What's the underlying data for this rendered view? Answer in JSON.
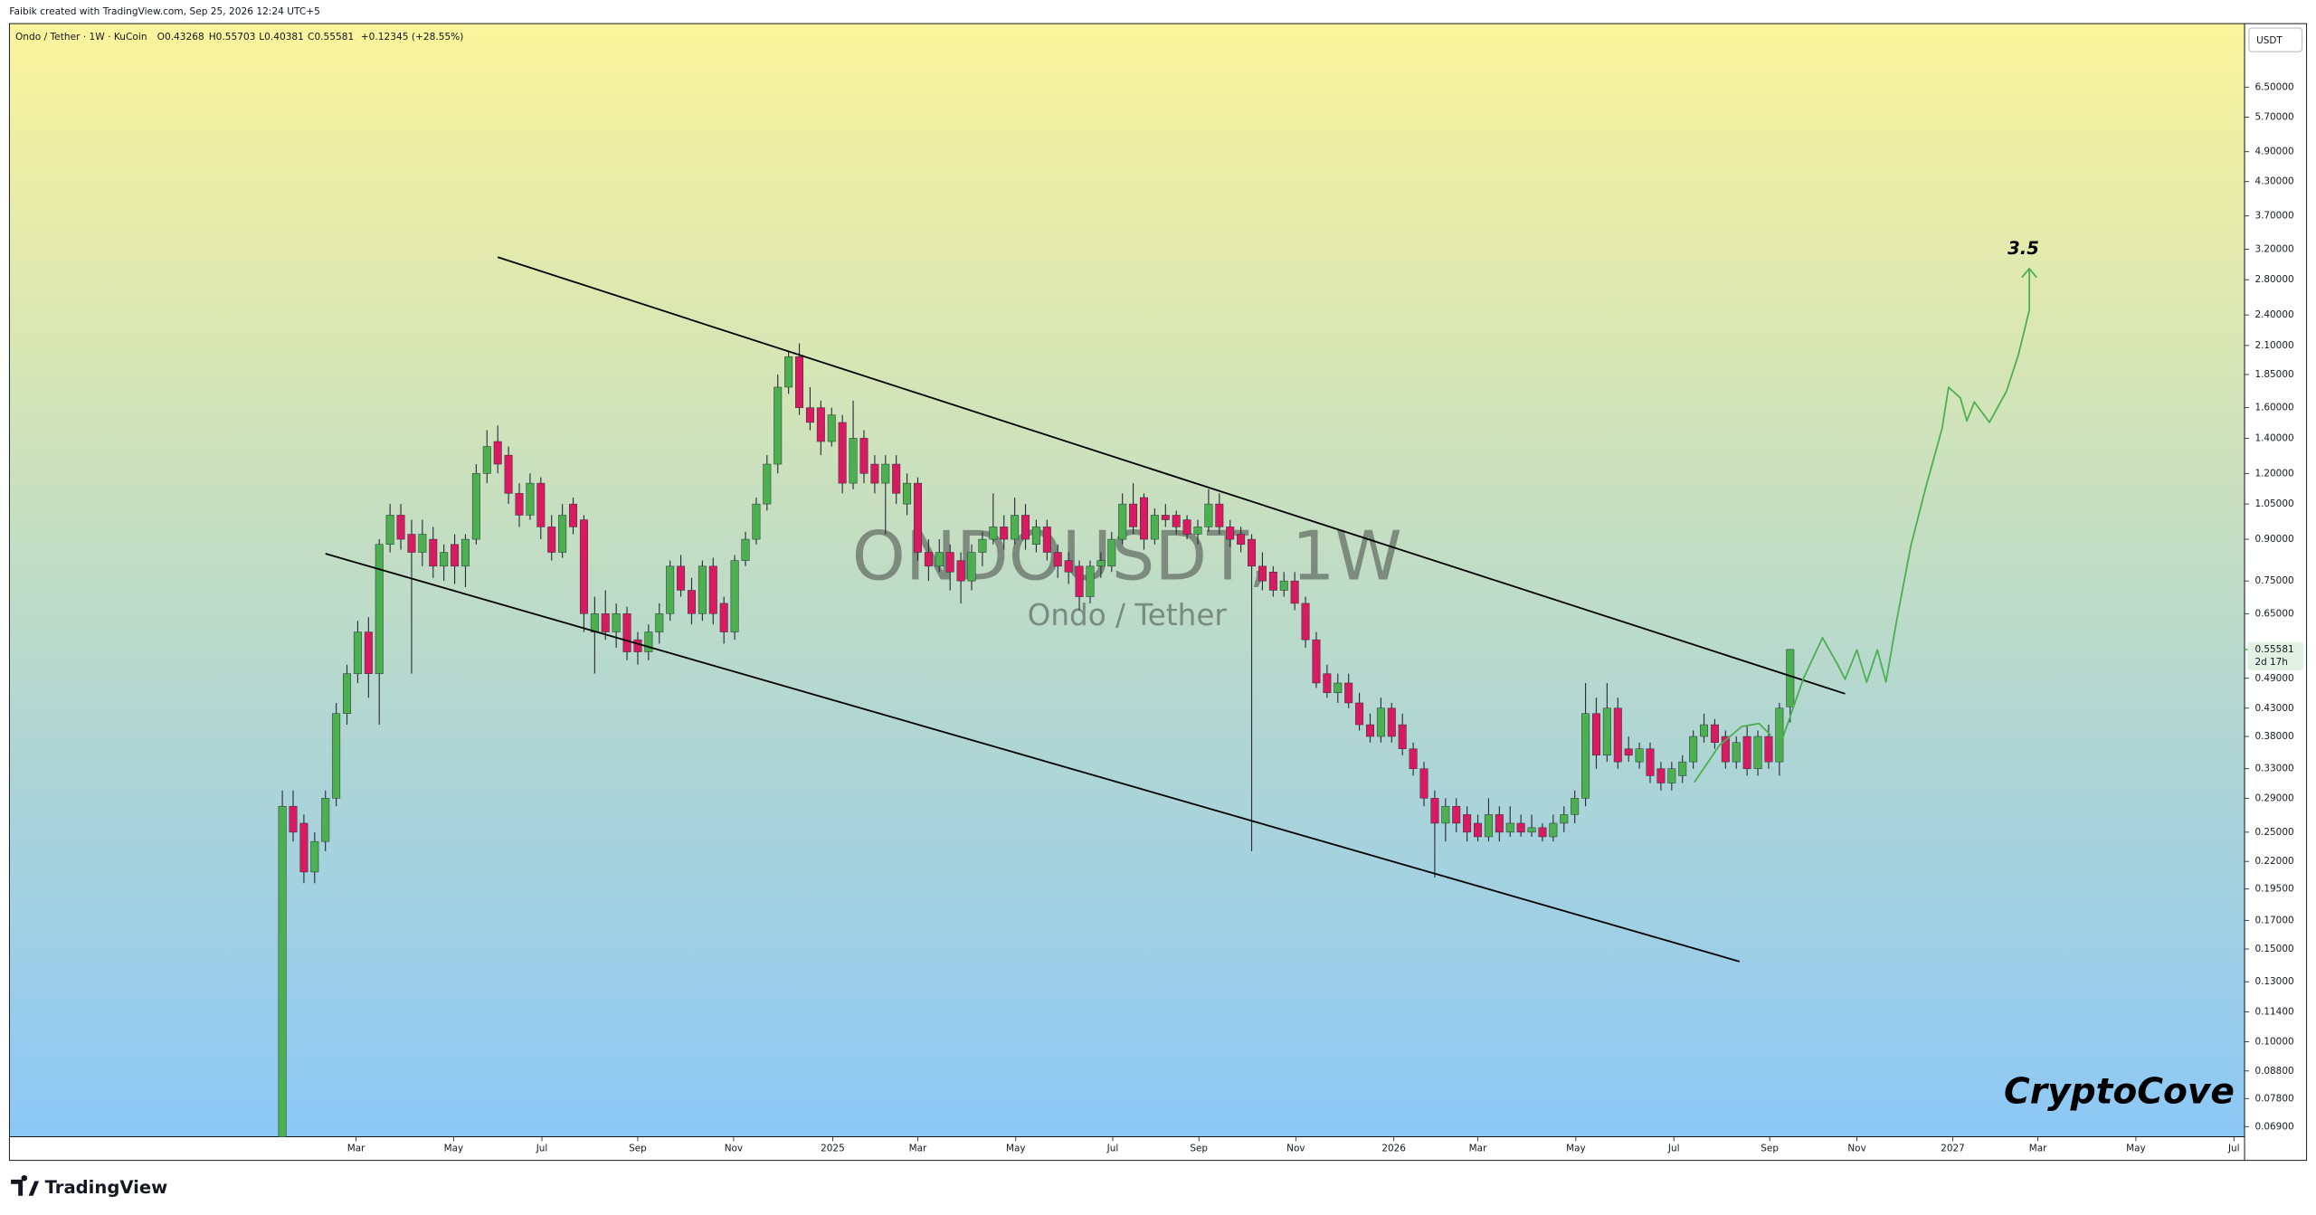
{
  "chart_data": {
    "type": "candlestick",
    "created_by": "Faibik created with TradingView.com, Sep 25, 2026 12:24 UTC+5",
    "legend": {
      "symbol": "Ondo / Tether · 1W · KuCoin",
      "open": "O0.43268",
      "high": "H0.55703",
      "low": "L0.40381",
      "close": "C0.55581",
      "change": "+0.12345 (+28.55%)"
    },
    "watermark": {
      "symbol": "ONDOUSDT, 1W",
      "description": "Ondo / Tether"
    },
    "currency": "USDT",
    "brand": "TradingView",
    "signature": "CryptoCove",
    "log_scale": true,
    "grid": false,
    "up_color": "#4caf50",
    "down_color": "#d81b60",
    "wick_color": "#2a2e39",
    "ylim": [
      0.066,
      8.58
    ],
    "yticks": [
      {
        "value": 6.5,
        "label": "6.50000"
      },
      {
        "value": 5.7,
        "label": "5.70000"
      },
      {
        "value": 4.9,
        "label": "4.90000"
      },
      {
        "value": 4.3,
        "label": "4.30000"
      },
      {
        "value": 3.7,
        "label": "3.70000"
      },
      {
        "value": 3.2,
        "label": "3.20000"
      },
      {
        "value": 2.8,
        "label": "2.80000"
      },
      {
        "value": 2.4,
        "label": "2.40000"
      },
      {
        "value": 2.1,
        "label": "2.10000"
      },
      {
        "value": 1.85,
        "label": "1.85000"
      },
      {
        "value": 1.6,
        "label": "1.60000"
      },
      {
        "value": 1.4,
        "label": "1.40000"
      },
      {
        "value": 1.2,
        "label": "1.20000"
      },
      {
        "value": 1.05,
        "label": "1.05000"
      },
      {
        "value": 0.9,
        "label": "0.90000"
      },
      {
        "value": 0.75,
        "label": "0.75000"
      },
      {
        "value": 0.65,
        "label": "0.65000"
      },
      {
        "value": 0.49,
        "label": "0.49000"
      },
      {
        "value": 0.43,
        "label": "0.43000"
      },
      {
        "value": 0.38,
        "label": "0.38000"
      },
      {
        "value": 0.33,
        "label": "0.33000"
      },
      {
        "value": 0.29,
        "label": "0.29000"
      },
      {
        "value": 0.25,
        "label": "0.25000"
      },
      {
        "value": 0.22,
        "label": "0.22000"
      },
      {
        "value": 0.195,
        "label": "0.19500"
      },
      {
        "value": 0.17,
        "label": "0.17000"
      },
      {
        "value": 0.15,
        "label": "0.15000"
      },
      {
        "value": 0.13,
        "label": "0.13000"
      },
      {
        "value": 0.114,
        "label": "0.11400"
      },
      {
        "value": 0.1,
        "label": "0.10000"
      },
      {
        "value": 0.088,
        "label": "0.08800"
      },
      {
        "value": 0.078,
        "label": "0.07800"
      },
      {
        "value": 0.069,
        "label": "0.06900"
      }
    ],
    "last_price": {
      "value": 0.55581,
      "label": "0.55581",
      "countdown": "2d 17h"
    },
    "xlim": [
      -25.34,
      182.19
    ],
    "xticks": [
      {
        "value": 6.85,
        "label": "Mar"
      },
      {
        "value": 15.9,
        "label": "May"
      },
      {
        "value": 24.1,
        "label": "Jul"
      },
      {
        "value": 33.0,
        "label": "Sep"
      },
      {
        "value": 41.9,
        "label": "Nov"
      },
      {
        "value": 51.1,
        "label": "2025"
      },
      {
        "value": 59.0,
        "label": "Mar"
      },
      {
        "value": 68.1,
        "label": "May"
      },
      {
        "value": 77.1,
        "label": "Jul"
      },
      {
        "value": 85.1,
        "label": "Sep"
      },
      {
        "value": 94.1,
        "label": "Nov"
      },
      {
        "value": 103.2,
        "label": "2026"
      },
      {
        "value": 111.0,
        "label": "Mar"
      },
      {
        "value": 120.1,
        "label": "May"
      },
      {
        "value": 129.2,
        "label": "Jul"
      },
      {
        "value": 138.1,
        "label": "Sep"
      },
      {
        "value": 146.2,
        "label": "Nov"
      },
      {
        "value": 155.1,
        "label": "2027"
      },
      {
        "value": 163.0,
        "label": "Mar"
      },
      {
        "value": 172.1,
        "label": "May"
      },
      {
        "value": 181.2,
        "label": "Jul"
      }
    ],
    "ohlc": [
      [
        0.065,
        0.3,
        0.06,
        0.28
      ],
      [
        0.28,
        0.3,
        0.24,
        0.25
      ],
      [
        0.26,
        0.27,
        0.2,
        0.21
      ],
      [
        0.21,
        0.25,
        0.2,
        0.24
      ],
      [
        0.24,
        0.3,
        0.23,
        0.29
      ],
      [
        0.29,
        0.44,
        0.28,
        0.42
      ],
      [
        0.42,
        0.52,
        0.4,
        0.5
      ],
      [
        0.5,
        0.63,
        0.48,
        0.6
      ],
      [
        0.6,
        0.64,
        0.45,
        0.5
      ],
      [
        0.5,
        0.9,
        0.4,
        0.88
      ],
      [
        0.88,
        1.05,
        0.85,
        1.0
      ],
      [
        1.0,
        1.05,
        0.86,
        0.9
      ],
      [
        0.92,
        0.98,
        0.5,
        0.85
      ],
      [
        0.85,
        0.98,
        0.8,
        0.92
      ],
      [
        0.9,
        0.95,
        0.76,
        0.8
      ],
      [
        0.8,
        0.88,
        0.75,
        0.85
      ],
      [
        0.88,
        0.92,
        0.74,
        0.8
      ],
      [
        0.8,
        0.92,
        0.73,
        0.9
      ],
      [
        0.9,
        1.25,
        0.88,
        1.2
      ],
      [
        1.2,
        1.45,
        1.15,
        1.35
      ],
      [
        1.38,
        1.48,
        1.2,
        1.25
      ],
      [
        1.3,
        1.35,
        1.05,
        1.1
      ],
      [
        1.1,
        1.15,
        0.95,
        1.0
      ],
      [
        1.0,
        1.2,
        0.98,
        1.15
      ],
      [
        1.15,
        1.18,
        0.9,
        0.95
      ],
      [
        0.95,
        1.0,
        0.82,
        0.85
      ],
      [
        0.85,
        1.05,
        0.83,
        1.0
      ],
      [
        1.05,
        1.08,
        0.92,
        0.95
      ],
      [
        0.98,
        1.0,
        0.6,
        0.65
      ],
      [
        0.6,
        0.7,
        0.5,
        0.65
      ],
      [
        0.65,
        0.72,
        0.58,
        0.6
      ],
      [
        0.6,
        0.68,
        0.56,
        0.65
      ],
      [
        0.65,
        0.67,
        0.53,
        0.55
      ],
      [
        0.58,
        0.6,
        0.52,
        0.55
      ],
      [
        0.55,
        0.62,
        0.53,
        0.6
      ],
      [
        0.6,
        0.68,
        0.57,
        0.65
      ],
      [
        0.65,
        0.82,
        0.63,
        0.8
      ],
      [
        0.8,
        0.84,
        0.7,
        0.72
      ],
      [
        0.72,
        0.76,
        0.62,
        0.65
      ],
      [
        0.65,
        0.82,
        0.63,
        0.8
      ],
      [
        0.8,
        0.83,
        0.62,
        0.65
      ],
      [
        0.68,
        0.7,
        0.57,
        0.6
      ],
      [
        0.6,
        0.84,
        0.58,
        0.82
      ],
      [
        0.82,
        0.93,
        0.8,
        0.9
      ],
      [
        0.9,
        1.08,
        0.88,
        1.05
      ],
      [
        1.05,
        1.3,
        1.02,
        1.25
      ],
      [
        1.25,
        1.85,
        1.2,
        1.75
      ],
      [
        1.75,
        2.05,
        1.7,
        2.0
      ],
      [
        2.0,
        2.12,
        1.55,
        1.6
      ],
      [
        1.6,
        1.75,
        1.45,
        1.5
      ],
      [
        1.6,
        1.65,
        1.3,
        1.38
      ],
      [
        1.38,
        1.6,
        1.35,
        1.55
      ],
      [
        1.5,
        1.55,
        1.1,
        1.15
      ],
      [
        1.15,
        1.65,
        1.12,
        1.4
      ],
      [
        1.4,
        1.45,
        1.15,
        1.2
      ],
      [
        1.25,
        1.3,
        1.1,
        1.15
      ],
      [
        1.15,
        1.3,
        0.92,
        1.25
      ],
      [
        1.25,
        1.3,
        1.05,
        1.1
      ],
      [
        1.05,
        1.2,
        1.0,
        1.15
      ],
      [
        1.15,
        1.18,
        0.82,
        0.85
      ],
      [
        0.85,
        0.9,
        0.75,
        0.8
      ],
      [
        0.8,
        0.9,
        0.78,
        0.85
      ],
      [
        0.85,
        0.88,
        0.72,
        0.78
      ],
      [
        0.82,
        0.85,
        0.68,
        0.75
      ],
      [
        0.75,
        0.88,
        0.72,
        0.85
      ],
      [
        0.85,
        0.93,
        0.8,
        0.9
      ],
      [
        0.9,
        1.1,
        0.88,
        0.95
      ],
      [
        0.95,
        1.0,
        0.86,
        0.9
      ],
      [
        0.9,
        1.08,
        0.88,
        1.0
      ],
      [
        1.0,
        1.05,
        0.86,
        0.9
      ],
      [
        0.88,
        0.98,
        0.85,
        0.95
      ],
      [
        0.95,
        0.98,
        0.82,
        0.85
      ],
      [
        0.85,
        0.88,
        0.76,
        0.8
      ],
      [
        0.82,
        0.85,
        0.74,
        0.78
      ],
      [
        0.8,
        0.82,
        0.66,
        0.7
      ],
      [
        0.7,
        0.82,
        0.68,
        0.8
      ],
      [
        0.8,
        0.85,
        0.76,
        0.82
      ],
      [
        0.8,
        0.93,
        0.78,
        0.9
      ],
      [
        0.9,
        1.1,
        0.88,
        1.05
      ],
      [
        1.05,
        1.15,
        0.92,
        0.95
      ],
      [
        1.08,
        1.1,
        0.86,
        0.9
      ],
      [
        0.9,
        1.03,
        0.88,
        1.0
      ],
      [
        1.0,
        1.05,
        0.95,
        0.98
      ],
      [
        1.0,
        1.02,
        0.92,
        0.95
      ],
      [
        0.98,
        1.0,
        0.9,
        0.92
      ],
      [
        0.92,
        0.98,
        0.88,
        0.95
      ],
      [
        0.95,
        1.12,
        0.93,
        1.05
      ],
      [
        1.05,
        1.1,
        0.92,
        0.95
      ],
      [
        0.95,
        0.98,
        0.87,
        0.9
      ],
      [
        0.92,
        0.95,
        0.85,
        0.88
      ],
      [
        0.9,
        0.92,
        0.23,
        0.8
      ],
      [
        0.8,
        0.85,
        0.72,
        0.75
      ],
      [
        0.78,
        0.8,
        0.7,
        0.72
      ],
      [
        0.72,
        0.78,
        0.7,
        0.75
      ],
      [
        0.75,
        0.78,
        0.66,
        0.68
      ],
      [
        0.68,
        0.7,
        0.56,
        0.58
      ],
      [
        0.58,
        0.6,
        0.47,
        0.48
      ],
      [
        0.5,
        0.52,
        0.45,
        0.46
      ],
      [
        0.46,
        0.5,
        0.44,
        0.48
      ],
      [
        0.48,
        0.5,
        0.43,
        0.44
      ],
      [
        0.44,
        0.46,
        0.39,
        0.4
      ],
      [
        0.4,
        0.42,
        0.37,
        0.38
      ],
      [
        0.38,
        0.45,
        0.37,
        0.43
      ],
      [
        0.43,
        0.44,
        0.37,
        0.38
      ],
      [
        0.4,
        0.42,
        0.35,
        0.36
      ],
      [
        0.36,
        0.37,
        0.32,
        0.33
      ],
      [
        0.33,
        0.34,
        0.28,
        0.29
      ],
      [
        0.29,
        0.3,
        0.205,
        0.26
      ],
      [
        0.26,
        0.29,
        0.24,
        0.28
      ],
      [
        0.28,
        0.29,
        0.25,
        0.26
      ],
      [
        0.27,
        0.28,
        0.24,
        0.25
      ],
      [
        0.26,
        0.27,
        0.24,
        0.245
      ],
      [
        0.245,
        0.29,
        0.24,
        0.27
      ],
      [
        0.27,
        0.28,
        0.24,
        0.25
      ],
      [
        0.25,
        0.28,
        0.245,
        0.26
      ],
      [
        0.26,
        0.27,
        0.245,
        0.25
      ],
      [
        0.25,
        0.27,
        0.245,
        0.255
      ],
      [
        0.255,
        0.26,
        0.24,
        0.245
      ],
      [
        0.245,
        0.27,
        0.24,
        0.26
      ],
      [
        0.26,
        0.28,
        0.25,
        0.27
      ],
      [
        0.27,
        0.3,
        0.26,
        0.29
      ],
      [
        0.29,
        0.48,
        0.28,
        0.42
      ],
      [
        0.42,
        0.45,
        0.33,
        0.35
      ],
      [
        0.35,
        0.48,
        0.34,
        0.43
      ],
      [
        0.43,
        0.45,
        0.33,
        0.34
      ],
      [
        0.36,
        0.38,
        0.34,
        0.35
      ],
      [
        0.34,
        0.37,
        0.33,
        0.36
      ],
      [
        0.36,
        0.37,
        0.31,
        0.32
      ],
      [
        0.33,
        0.34,
        0.3,
        0.31
      ],
      [
        0.31,
        0.34,
        0.3,
        0.33
      ],
      [
        0.32,
        0.35,
        0.31,
        0.34
      ],
      [
        0.34,
        0.39,
        0.33,
        0.38
      ],
      [
        0.38,
        0.42,
        0.37,
        0.4
      ],
      [
        0.4,
        0.41,
        0.36,
        0.37
      ],
      [
        0.38,
        0.39,
        0.33,
        0.34
      ],
      [
        0.34,
        0.38,
        0.33,
        0.37
      ],
      [
        0.38,
        0.4,
        0.32,
        0.33
      ],
      [
        0.33,
        0.39,
        0.32,
        0.38
      ],
      [
        0.38,
        0.4,
        0.33,
        0.34
      ],
      [
        0.34,
        0.44,
        0.32,
        0.43
      ],
      [
        0.43268,
        0.55703,
        0.40381,
        0.55581
      ]
    ],
    "trendlines": [
      {
        "color": "#000000",
        "x": [
          20.0,
          145.1
        ],
        "y": [
          3.09,
          0.458
        ]
      },
      {
        "color": "#000000",
        "x": [
          4.0,
          135.3
        ],
        "y": [
          0.845,
          0.142
        ]
      }
    ],
    "projections": [
      {
        "color": "#4caf50",
        "x": [
          139.3,
          141.2,
          143.0,
          144.4,
          145.1,
          146.2,
          147.1,
          148.1,
          148.9,
          149.9,
          151.2,
          152.6,
          154.1,
          154.7,
          155.8,
          156.4,
          157.1,
          158.5,
          160.1,
          161.2,
          162.2,
          162.2
        ],
        "y": [
          0.377,
          0.488,
          0.585,
          0.521,
          0.488,
          0.555,
          0.482,
          0.555,
          0.482,
          0.632,
          0.873,
          1.13,
          1.46,
          1.75,
          1.67,
          1.51,
          1.64,
          1.5,
          1.72,
          2.02,
          2.45,
          2.94
        ]
      },
      {
        "color": "#4caf50",
        "x": [
          131.1,
          133.4,
          135.5,
          137.1,
          138.2
        ],
        "y": [
          0.311,
          0.365,
          0.397,
          0.402,
          0.382
        ]
      }
    ],
    "annotation": "3.5"
  }
}
